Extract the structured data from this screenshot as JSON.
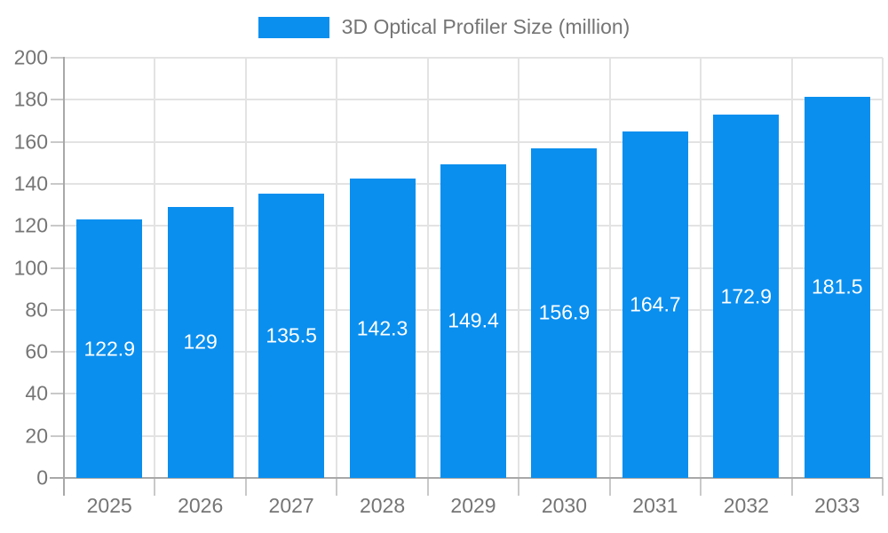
{
  "chart_data": {
    "type": "bar",
    "title": "3D Optical Profiler Size (million)",
    "legend_entries": [
      "3D Optical Profiler Size (million)"
    ],
    "legend_position": "top",
    "categories": [
      "2025",
      "2026",
      "2027",
      "2028",
      "2029",
      "2030",
      "2031",
      "2032",
      "2033"
    ],
    "series": [
      {
        "name": "3D Optical Profiler Size (million)",
        "values": [
          122.9,
          129,
          135.5,
          142.3,
          149.4,
          156.9,
          164.7,
          172.9,
          181.5
        ]
      }
    ],
    "bar_labels": [
      "122.9",
      "129",
      "135.5",
      "142.3",
      "149.4",
      "156.9",
      "164.7",
      "172.9",
      "181.5"
    ],
    "xlabel": "",
    "ylabel": "",
    "ylim": [
      0,
      200
    ],
    "y_tick_step": 20,
    "y_tick_labels": [
      "0",
      "20",
      "40",
      "60",
      "80",
      "100",
      "120",
      "140",
      "160",
      "180",
      "200"
    ],
    "grid": "on",
    "bar_value_label_position": "center-inside",
    "colors": {
      "bar": "#0a8fef",
      "bar_label_text": "#ffffff",
      "axis_text": "#757575",
      "grid_line": "#e3e3e3",
      "axis_line": "#a8a8a8",
      "tick_line": "#c9c9c9",
      "background": "#ffffff"
    }
  }
}
